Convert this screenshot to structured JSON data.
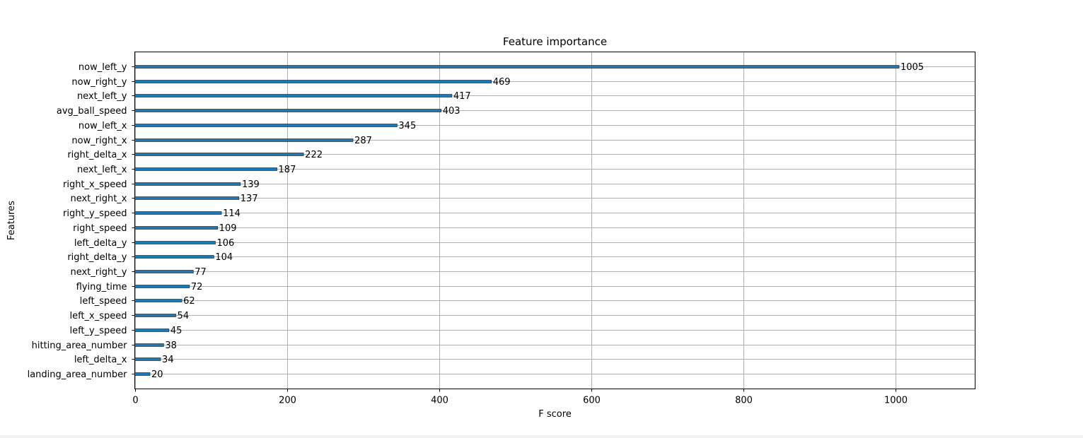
{
  "chart_data": {
    "type": "bar",
    "orientation": "horizontal",
    "title": "Feature importance",
    "xlabel": "F score",
    "ylabel": "Features",
    "xlim": [
      0,
      1105
    ],
    "xticks": [
      0,
      200,
      400,
      600,
      800,
      1000
    ],
    "grid": true,
    "bar_color": "#1f77b4",
    "categories": [
      "now_left_y",
      "now_right_y",
      "next_left_y",
      "avg_ball_speed",
      "now_left_x",
      "now_right_x",
      "right_delta_x",
      "next_left_x",
      "right_x_speed",
      "next_right_x",
      "right_y_speed",
      "right_speed",
      "left_delta_y",
      "right_delta_y",
      "next_right_y",
      "flying_time",
      "left_speed",
      "left_x_speed",
      "left_y_speed",
      "hitting_area_number",
      "left_delta_x",
      "landing_area_number"
    ],
    "values": [
      1005,
      469,
      417,
      403,
      345,
      287,
      222,
      187,
      139,
      137,
      114,
      109,
      106,
      104,
      77,
      72,
      62,
      54,
      45,
      38,
      34,
      20
    ]
  }
}
